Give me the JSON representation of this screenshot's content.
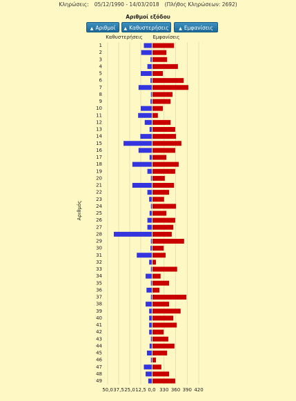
{
  "header": {
    "label": "Κληρώσεις:",
    "period": "05/12/1990 - 14/03/2018",
    "count": "(Πλήθος Κληρώσεων: 2692)"
  },
  "chart_data": {
    "type": "diverging_bar",
    "title": "Αριθμοί εξόδου",
    "buttons": [
      "Αριθμοί",
      "Καθυστερήσεις",
      "Εμφανίσεις"
    ],
    "ylabel": "Αριθμός",
    "categories": [
      "1",
      "2",
      "3",
      "4",
      "5",
      "6",
      "7",
      "8",
      "9",
      "10",
      "11",
      "12",
      "13",
      "14",
      "15",
      "16",
      "17",
      "18",
      "19",
      "20",
      "21",
      "22",
      "23",
      "24",
      "25",
      "26",
      "27",
      "28",
      "29",
      "30",
      "31",
      "32",
      "33",
      "34",
      "35",
      "36",
      "37",
      "38",
      "39",
      "40",
      "41",
      "42",
      "43",
      "44",
      "45",
      "46",
      "47",
      "48",
      "49"
    ],
    "series": [
      {
        "name": "Καθυστερήσεις",
        "color": "#3535e0",
        "side": "left",
        "xlim": [
          0,
          50
        ],
        "xticks": [
          {
            "value": 50,
            "label": "50,0"
          },
          {
            "value": 37.5,
            "label": "37,5"
          },
          {
            "value": 25,
            "label": "25,0"
          },
          {
            "value": 12.5,
            "label": "12,5"
          },
          {
            "value": 0,
            "label": "0,0"
          }
        ],
        "values": [
          9,
          12,
          1.5,
          5,
          12.5,
          1.5,
          15,
          1,
          1.5,
          12.5,
          15.5,
          8,
          2.5,
          13,
          32,
          15,
          2.5,
          22,
          5,
          1,
          22,
          5,
          3,
          1,
          2.5,
          5,
          5,
          43,
          1,
          1.5,
          17,
          3,
          1,
          7,
          1,
          6,
          1,
          7,
          3,
          3,
          3,
          3,
          1,
          2.5,
          5.5,
          1,
          9,
          7,
          4
        ]
      },
      {
        "name": "Εμφανίσεις",
        "color": "#c80000",
        "side": "right",
        "xlim": [
          300,
          420
        ],
        "xticks": [
          330,
          360,
          390,
          420
        ],
        "values": [
          356,
          336,
          338,
          366,
          327,
          381,
          393,
          352,
          347,
          327,
          314,
          347,
          359,
          361,
          375,
          359,
          336,
          368,
          359,
          332,
          356,
          343,
          330,
          361,
          336,
          359,
          354,
          350,
          382,
          329,
          334,
          309,
          364,
          321,
          343,
          318,
          388,
          343,
          373,
          354,
          363,
          329,
          341,
          357,
          338,
          309,
          323,
          343,
          359
        ]
      }
    ]
  }
}
